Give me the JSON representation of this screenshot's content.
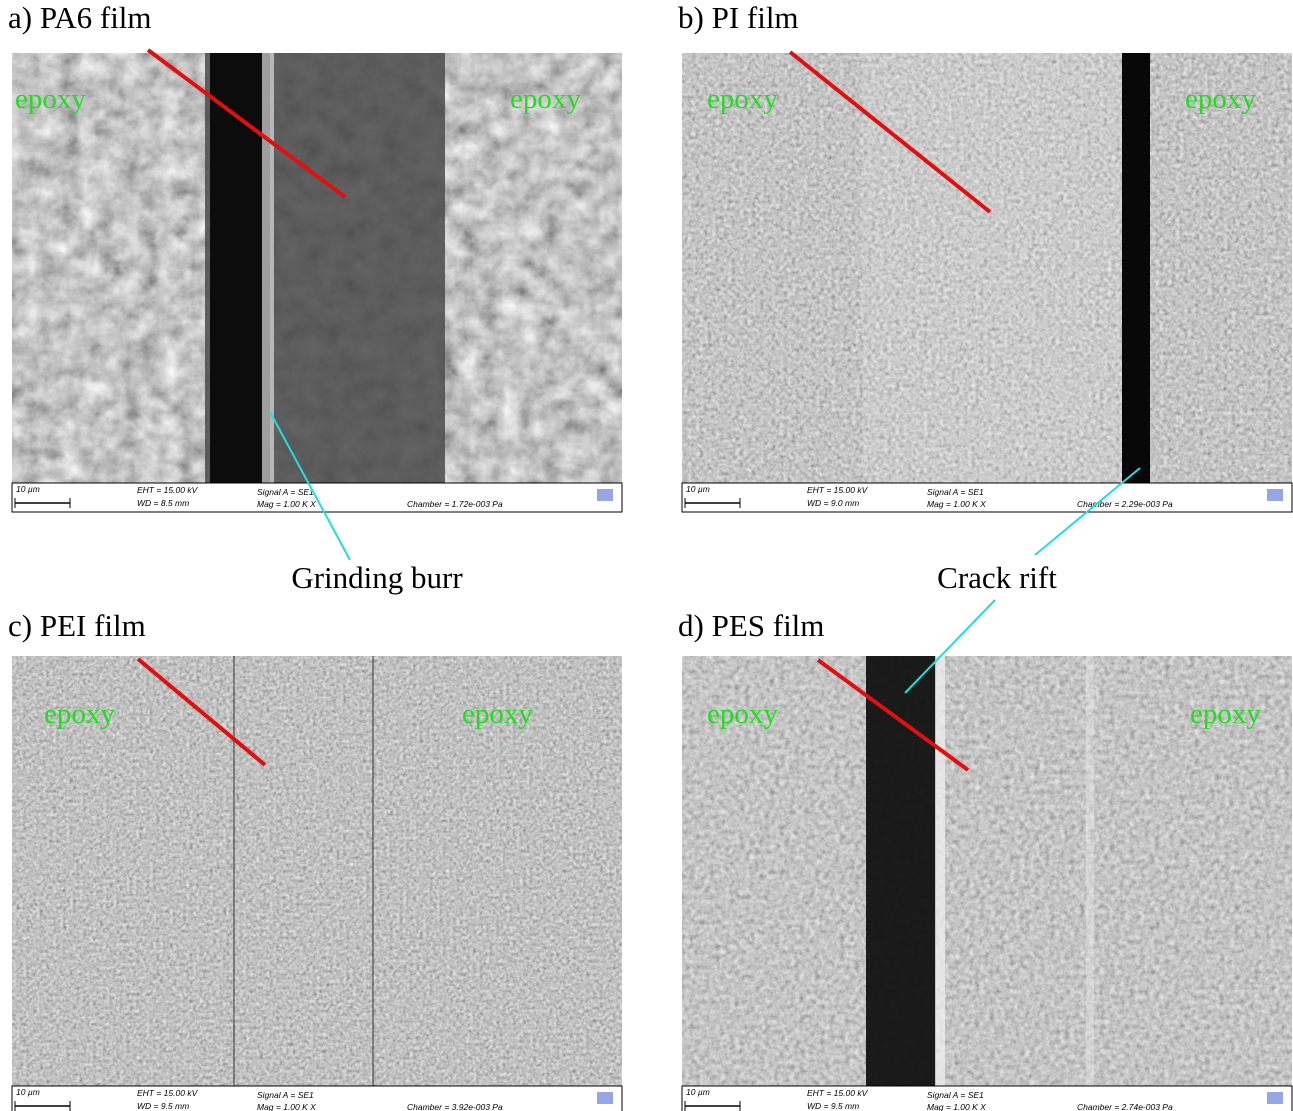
{
  "panels": [
    {
      "label": "a) PA6 film",
      "epoxy_labels": [
        "epoxy",
        "epoxy"
      ],
      "info": {
        "scale": "10 µm",
        "eht": "EHT = 15.00 kV",
        "wd": "WD = 8.5 mm",
        "signal": "Signal A = SE1",
        "mag": "Mag = 1.00 K X",
        "chamber": "Chamber = 1.72e-003 Pa"
      }
    },
    {
      "label": "b) PI film",
      "epoxy_labels": [
        "epoxy",
        "epoxy"
      ],
      "info": {
        "scale": "10 µm",
        "eht": "EHT = 15.00 kV",
        "wd": "WD = 9.0 mm",
        "signal": "Signal A = SE1",
        "mag": "Mag = 1.00 K X",
        "chamber": "Chamber = 2.29e-003 Pa"
      }
    },
    {
      "label": "c) PEI film",
      "epoxy_labels": [
        "epoxy",
        "epoxy"
      ],
      "info": {
        "scale": "10 µm",
        "eht": "EHT = 15.00 kV",
        "wd": "WD = 9.5 mm",
        "signal": "Signal A = SE1",
        "mag": "Mag = 1.00 K X",
        "chamber": "Chamber = 3.92e-003 Pa"
      }
    },
    {
      "label": "d) PES film",
      "epoxy_labels": [
        "epoxy",
        "epoxy"
      ],
      "info": {
        "scale": "10 µm",
        "eht": "EHT = 15.00 kV",
        "wd": "WD = 9.5 mm",
        "signal": "Signal A = SE1",
        "mag": "Mag = 1.00 K X",
        "chamber": "Chamber = 2.74e-003 Pa"
      }
    }
  ],
  "annotations": [
    "Grinding burr",
    "Crack rift"
  ]
}
